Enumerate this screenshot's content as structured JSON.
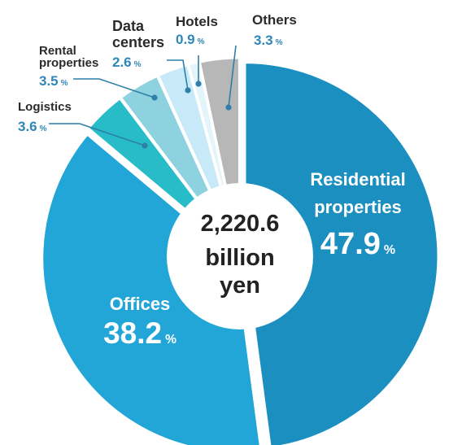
{
  "chart_data": {
    "type": "pie",
    "style": "donut",
    "center_text": [
      "2,220.6",
      "billion",
      "yen"
    ],
    "slices": [
      {
        "label": [
          "Residential",
          "properties"
        ],
        "value": 47.9,
        "color": "#1b8fbf",
        "label_mode": "inside"
      },
      {
        "label": [
          "Offices"
        ],
        "value": 38.2,
        "color": "#22a6d8",
        "label_mode": "inside"
      },
      {
        "label": [
          "Logistics"
        ],
        "value": 3.6,
        "color": "#27bcc8",
        "label_mode": "outside"
      },
      {
        "label": [
          "Rental",
          "properties"
        ],
        "value": 3.5,
        "color": "#8fd2df",
        "label_mode": "outside"
      },
      {
        "label": [
          "Data",
          "centers"
        ],
        "value": 2.6,
        "color": "#c8e9f7",
        "label_mode": "outside"
      },
      {
        "label": [
          "Hotels"
        ],
        "value": 0.9,
        "color": "#e4f4fb",
        "label_mode": "outside"
      },
      {
        "label": [
          "Others"
        ],
        "value": 3.3,
        "color": "#b7b7b7",
        "label_mode": "outside"
      }
    ],
    "unit": "%"
  }
}
